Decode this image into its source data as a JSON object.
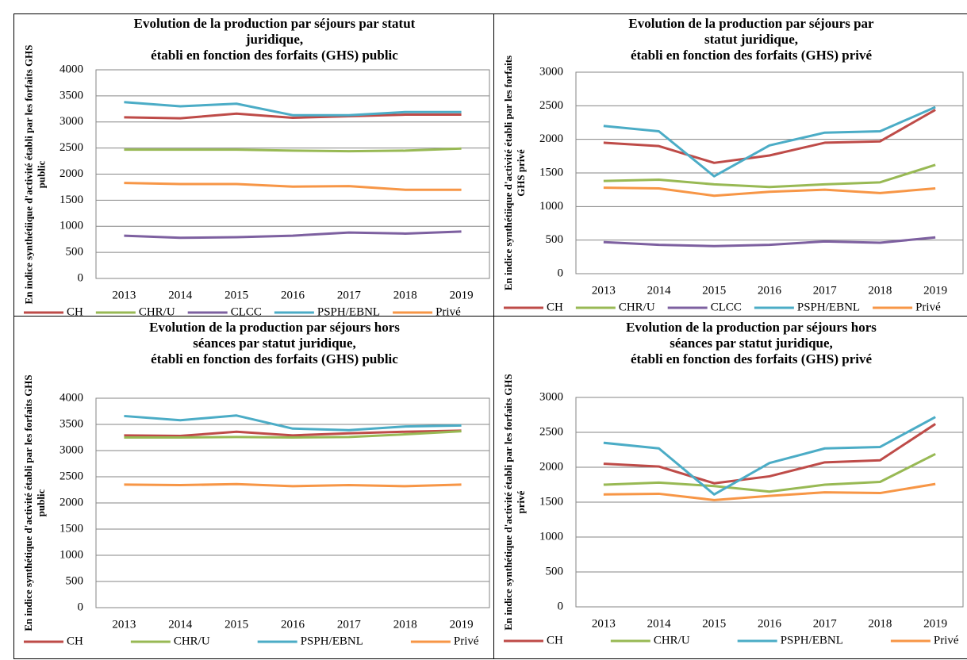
{
  "chart_data": [
    {
      "type": "line",
      "title": "Evolution de la production par séjours par statut\njuridique,\nétabli en fonction des forfaits (GHS) public",
      "ylabel": "En indice synthétiique d'activité établi par les forfaits GHS public",
      "categories": [
        "2013",
        "2014",
        "2015",
        "2016",
        "2017",
        "2018",
        "2019"
      ],
      "series": [
        {
          "name": "CH",
          "color": "#be4b48",
          "values": [
            3090,
            3070,
            3160,
            3080,
            3110,
            3140,
            3140
          ]
        },
        {
          "name": "CHR/U",
          "color": "#98b954",
          "values": [
            2470,
            2470,
            2470,
            2450,
            2440,
            2450,
            2490
          ]
        },
        {
          "name": "CLCC",
          "color": "#7d60a0",
          "values": [
            820,
            780,
            790,
            820,
            880,
            860,
            900
          ]
        },
        {
          "name": "PSPH/EBNL",
          "color": "#4bacc6",
          "values": [
            3380,
            3300,
            3350,
            3130,
            3130,
            3190,
            3190
          ]
        },
        {
          "name": "Privé",
          "color": "#f79646",
          "values": [
            1830,
            1810,
            1810,
            1760,
            1770,
            1700,
            1700
          ]
        }
      ],
      "ylim": [
        0,
        4000
      ],
      "yticks": [
        0,
        500,
        1000,
        1500,
        2000,
        2500,
        3000,
        3500,
        4000
      ],
      "grid": true,
      "legend": "bottom"
    },
    {
      "type": "line",
      "title": "Evolution de la production par séjours par\nstatut juridique,\nétabli en fonction des forfaits (GHS) privé",
      "ylabel": "En indice synthétiique d'activité établi par les forfaits GHS privé",
      "categories": [
        "2013",
        "2014",
        "2015",
        "2016",
        "2017",
        "2018",
        "2019"
      ],
      "series": [
        {
          "name": "CH",
          "color": "#be4b48",
          "values": [
            1950,
            1900,
            1650,
            1760,
            1950,
            1970,
            2440
          ]
        },
        {
          "name": "CHR/U",
          "color": "#98b954",
          "values": [
            1380,
            1400,
            1330,
            1290,
            1330,
            1360,
            1620
          ]
        },
        {
          "name": "CLCC",
          "color": "#7d60a0",
          "values": [
            470,
            430,
            410,
            430,
            480,
            460,
            540
          ]
        },
        {
          "name": "PSPH/EBNL",
          "color": "#4bacc6",
          "values": [
            2200,
            2120,
            1450,
            1910,
            2100,
            2120,
            2480
          ]
        },
        {
          "name": "Privé",
          "color": "#f79646",
          "values": [
            1280,
            1270,
            1160,
            1220,
            1250,
            1200,
            1270
          ]
        }
      ],
      "ylim": [
        0,
        3000
      ],
      "yticks": [
        0,
        500,
        1000,
        1500,
        2000,
        2500,
        3000
      ],
      "grid": true,
      "legend": "bottom"
    },
    {
      "type": "line",
      "title": "Evolution de la production par séjours hors\nséances par statut juridique,\nétabli en fonction des forfaits (GHS) public",
      "ylabel": "En indice synthétique d'activité établi par les forfaits GHS public",
      "categories": [
        "2013",
        "2014",
        "2015",
        "2016",
        "2017",
        "2018",
        "2019"
      ],
      "series": [
        {
          "name": "CH",
          "color": "#be4b48",
          "values": [
            3290,
            3280,
            3360,
            3290,
            3330,
            3360,
            3380
          ]
        },
        {
          "name": "CHR/U",
          "color": "#98b954",
          "values": [
            3250,
            3250,
            3260,
            3250,
            3260,
            3310,
            3370
          ]
        },
        {
          "name": "PSPH/EBNL",
          "color": "#4bacc6",
          "values": [
            3660,
            3580,
            3670,
            3420,
            3390,
            3460,
            3480
          ]
        },
        {
          "name": "Privé",
          "color": "#f79646",
          "values": [
            2350,
            2340,
            2360,
            2320,
            2340,
            2320,
            2350
          ]
        }
      ],
      "ylim": [
        0,
        4000
      ],
      "yticks": [
        0,
        500,
        1000,
        1500,
        2000,
        2500,
        3000,
        3500,
        4000
      ],
      "grid": true,
      "legend": "bottom"
    },
    {
      "type": "line",
      "title": "Evolution de la production par séjours hors\nséances par statut juridique,\nétabli en fonction des forfaits (GHS) privé",
      "ylabel": "En indice synthétique d'activité établi par les forfaits GHS privé",
      "categories": [
        "2013",
        "2014",
        "2015",
        "2016",
        "2017",
        "2018",
        "2019"
      ],
      "series": [
        {
          "name": "CH",
          "color": "#be4b48",
          "values": [
            2050,
            2010,
            1770,
            1870,
            2070,
            2100,
            2620
          ]
        },
        {
          "name": "CHR/U",
          "color": "#98b954",
          "values": [
            1750,
            1780,
            1730,
            1650,
            1750,
            1790,
            2190
          ]
        },
        {
          "name": "PSPH/EBNL",
          "color": "#4bacc6",
          "values": [
            2350,
            2270,
            1610,
            2060,
            2270,
            2290,
            2720
          ]
        },
        {
          "name": "Privé",
          "color": "#f79646",
          "values": [
            1610,
            1620,
            1530,
            1590,
            1640,
            1630,
            1760
          ]
        }
      ],
      "ylim": [
        0,
        3000
      ],
      "yticks": [
        0,
        500,
        1000,
        1500,
        2000,
        2500,
        3000
      ],
      "grid": true,
      "legend": "bottom"
    }
  ]
}
